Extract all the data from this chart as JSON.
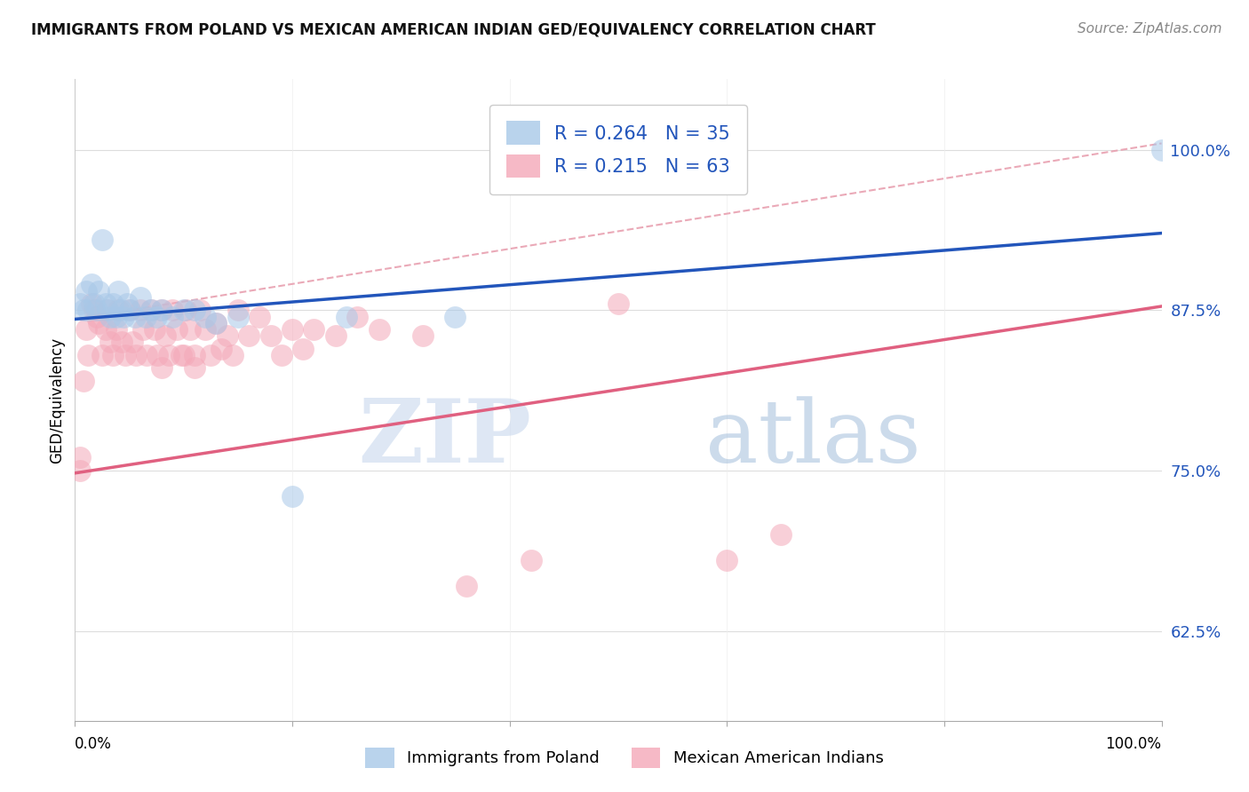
{
  "title": "IMMIGRANTS FROM POLAND VS MEXICAN AMERICAN INDIAN GED/EQUIVALENCY CORRELATION CHART",
  "source": "Source: ZipAtlas.com",
  "ylabel": "GED/Equivalency",
  "legend_label1": "Immigrants from Poland",
  "legend_label2": "Mexican American Indians",
  "R1": 0.264,
  "N1": 35,
  "R2": 0.215,
  "N2": 63,
  "y_ticks": [
    0.625,
    0.75,
    0.875,
    1.0
  ],
  "y_tick_labels": [
    "62.5%",
    "75.0%",
    "87.5%",
    "100.0%"
  ],
  "xlim": [
    0.0,
    1.0
  ],
  "ylim": [
    0.555,
    1.055
  ],
  "blue_color": "#a8c8e8",
  "pink_color": "#f4a8b8",
  "blue_line_color": "#2255bb",
  "pink_line_color": "#e06080",
  "dash_line_color": "#e8a0b0",
  "watermark_zip": "ZIP",
  "watermark_atlas": "atlas",
  "blue_line_x0": 0.0,
  "blue_line_y0": 0.868,
  "blue_line_x1": 1.0,
  "blue_line_y1": 0.935,
  "pink_line_x0": 0.0,
  "pink_line_y0": 0.748,
  "pink_line_x1": 1.0,
  "pink_line_y1": 0.878,
  "dash_line_x0": 0.0,
  "dash_line_y0": 0.868,
  "dash_line_x1": 1.0,
  "dash_line_y1": 1.005,
  "blue_scatter_x": [
    0.005,
    0.008,
    0.01,
    0.012,
    0.015,
    0.018,
    0.02,
    0.022,
    0.025,
    0.028,
    0.03,
    0.032,
    0.035,
    0.038,
    0.04,
    0.042,
    0.045,
    0.048,
    0.05,
    0.055,
    0.06,
    0.065,
    0.07,
    0.075,
    0.08,
    0.09,
    0.1,
    0.11,
    0.12,
    0.13,
    0.15,
    0.2,
    0.25,
    0.35,
    1.0
  ],
  "blue_scatter_y": [
    0.88,
    0.875,
    0.89,
    0.875,
    0.895,
    0.88,
    0.875,
    0.89,
    0.93,
    0.88,
    0.875,
    0.87,
    0.88,
    0.87,
    0.89,
    0.875,
    0.87,
    0.88,
    0.875,
    0.87,
    0.885,
    0.87,
    0.875,
    0.87,
    0.875,
    0.87,
    0.875,
    0.875,
    0.87,
    0.865,
    0.87,
    0.73,
    0.87,
    0.87,
    1.0
  ],
  "pink_scatter_x": [
    0.005,
    0.008,
    0.01,
    0.012,
    0.015,
    0.018,
    0.02,
    0.022,
    0.025,
    0.028,
    0.03,
    0.032,
    0.035,
    0.038,
    0.04,
    0.043,
    0.046,
    0.05,
    0.053,
    0.056,
    0.06,
    0.063,
    0.066,
    0.07,
    0.073,
    0.076,
    0.08,
    0.083,
    0.086,
    0.09,
    0.094,
    0.098,
    0.102,
    0.106,
    0.11,
    0.115,
    0.12,
    0.125,
    0.13,
    0.135,
    0.14,
    0.145,
    0.15,
    0.16,
    0.17,
    0.18,
    0.19,
    0.2,
    0.21,
    0.22,
    0.24,
    0.26,
    0.28,
    0.32,
    0.36,
    0.42,
    0.5,
    0.6,
    0.65,
    0.08,
    0.1,
    0.11,
    0.005
  ],
  "pink_scatter_y": [
    0.76,
    0.82,
    0.86,
    0.84,
    0.88,
    0.875,
    0.87,
    0.865,
    0.84,
    0.86,
    0.875,
    0.85,
    0.84,
    0.86,
    0.875,
    0.85,
    0.84,
    0.875,
    0.85,
    0.84,
    0.875,
    0.86,
    0.84,
    0.875,
    0.86,
    0.84,
    0.875,
    0.855,
    0.84,
    0.875,
    0.86,
    0.84,
    0.875,
    0.86,
    0.84,
    0.875,
    0.86,
    0.84,
    0.865,
    0.845,
    0.855,
    0.84,
    0.875,
    0.855,
    0.87,
    0.855,
    0.84,
    0.86,
    0.845,
    0.86,
    0.855,
    0.87,
    0.86,
    0.855,
    0.66,
    0.68,
    0.88,
    0.68,
    0.7,
    0.83,
    0.84,
    0.83,
    0.75
  ]
}
